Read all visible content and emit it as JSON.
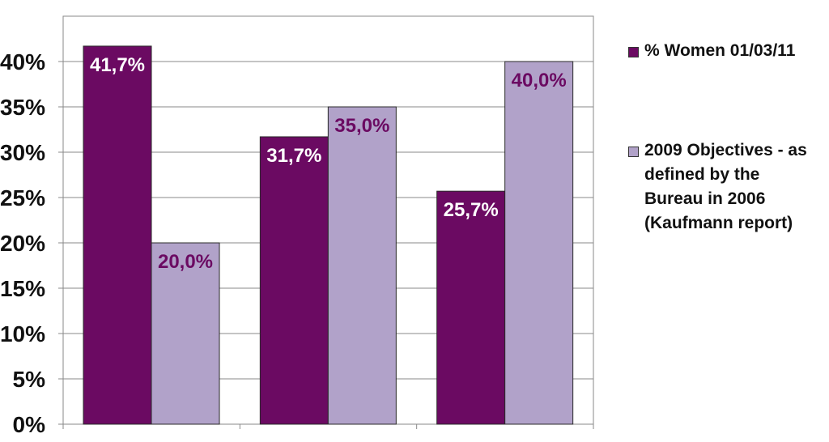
{
  "chart_data": {
    "type": "bar",
    "categories": [
      "",
      "",
      ""
    ],
    "series": [
      {
        "name": "% Women 01/03/11",
        "values": [
          41.7,
          31.7,
          25.7
        ],
        "labels": [
          "41,7%",
          "31,7%",
          "25,7%"
        ],
        "color": "#6b0a62",
        "label_color": "#ffffff"
      },
      {
        "name": "2009 Objectives - as defined by the Bureau in 2006 (Kaufmann report)",
        "values": [
          20.0,
          35.0,
          40.0
        ],
        "labels": [
          "20,0%",
          "35,0%",
          "40,0%"
        ],
        "color": "#b1a2c9",
        "label_color": "#6b0a62"
      }
    ],
    "ylim": [
      0,
      45
    ],
    "yticks": [
      0,
      5,
      10,
      15,
      20,
      25,
      30,
      35,
      40
    ],
    "ytick_labels": [
      "0%",
      "5%",
      "10%",
      "15%",
      "20%",
      "25%",
      "30%",
      "35%",
      "40%"
    ],
    "grid": true,
    "legend_position": "right",
    "title": "",
    "xlabel": "",
    "ylabel": ""
  }
}
